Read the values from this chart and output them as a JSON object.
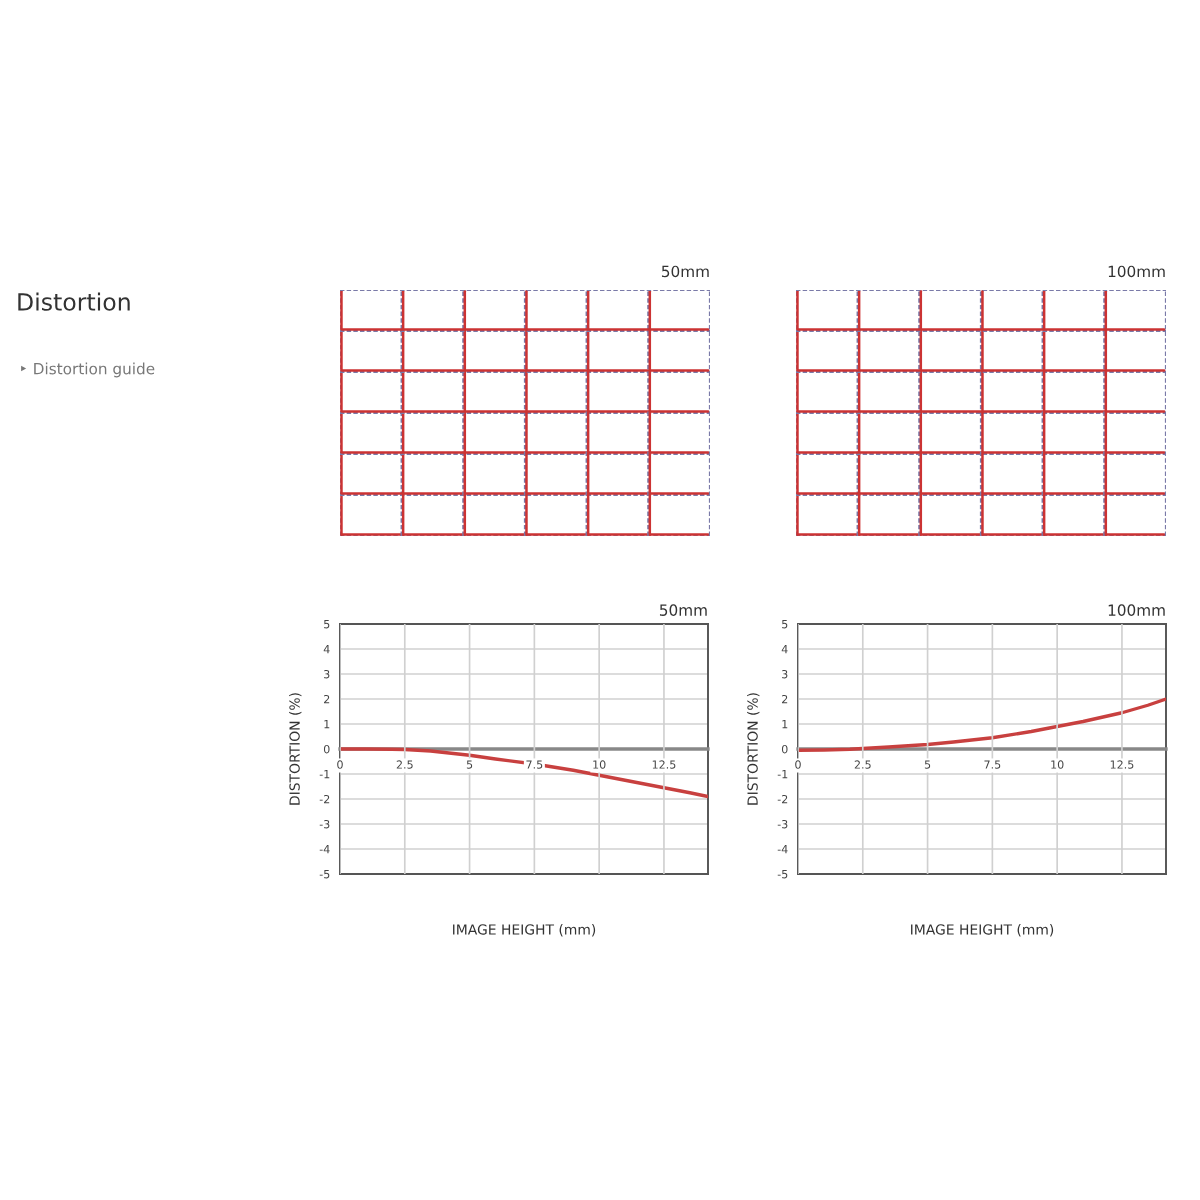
{
  "chart_data": [
    {
      "type": "other",
      "title": "Distortion",
      "annotations": [
        "‣ Distortion guide"
      ]
    },
    {
      "type": "other",
      "title": "50mm"
    },
    {
      "type": "other",
      "title": "100mm"
    },
    {
      "type": "line",
      "title": "50mm",
      "xlabel": "IMAGE HEIGHT (mm)",
      "ylabel": "DISTORTION (%)",
      "xlim": [
        0,
        14.2
      ],
      "ylim": [
        -5,
        5
      ],
      "xticks": [
        0,
        2.5,
        5,
        7.5,
        10,
        12.5
      ],
      "yticks": [
        -5,
        -4,
        -3,
        -2,
        -1,
        0,
        1,
        2,
        3,
        4,
        5
      ],
      "grid": true,
      "legend": false,
      "x": [
        0,
        1,
        2,
        2.5,
        3.5,
        5,
        6,
        7.5,
        9,
        10,
        11,
        12.5,
        13.5,
        14.2
      ],
      "series": [
        {
          "color": "#c8403f",
          "values": [
            0,
            0,
            -0.01,
            -0.02,
            -0.08,
            -0.25,
            -0.4,
            -0.6,
            -0.85,
            -1.05,
            -1.25,
            -1.55,
            -1.75,
            -1.9
          ]
        }
      ]
    },
    {
      "type": "line",
      "title": "100mm",
      "xlabel": "IMAGE HEIGHT (mm)",
      "ylabel": "DISTORTION (%)",
      "xlim": [
        0,
        14.2
      ],
      "ylim": [
        -5,
        5
      ],
      "xticks": [
        0,
        2.5,
        5,
        7.5,
        10,
        12.5
      ],
      "yticks": [
        -5,
        -4,
        -3,
        -2,
        -1,
        0,
        1,
        2,
        3,
        4,
        5
      ],
      "grid": true,
      "legend": false,
      "x": [
        0,
        1,
        2,
        2.5,
        3.5,
        5,
        6,
        7.5,
        9,
        10,
        11,
        12.5,
        13.5,
        14.2
      ],
      "series": [
        {
          "color": "#c8403f",
          "values": [
            -0.05,
            -0.04,
            -0.01,
            0.02,
            0.08,
            0.18,
            0.28,
            0.45,
            0.7,
            0.9,
            1.1,
            1.45,
            1.75,
            2.0
          ]
        }
      ]
    }
  ]
}
